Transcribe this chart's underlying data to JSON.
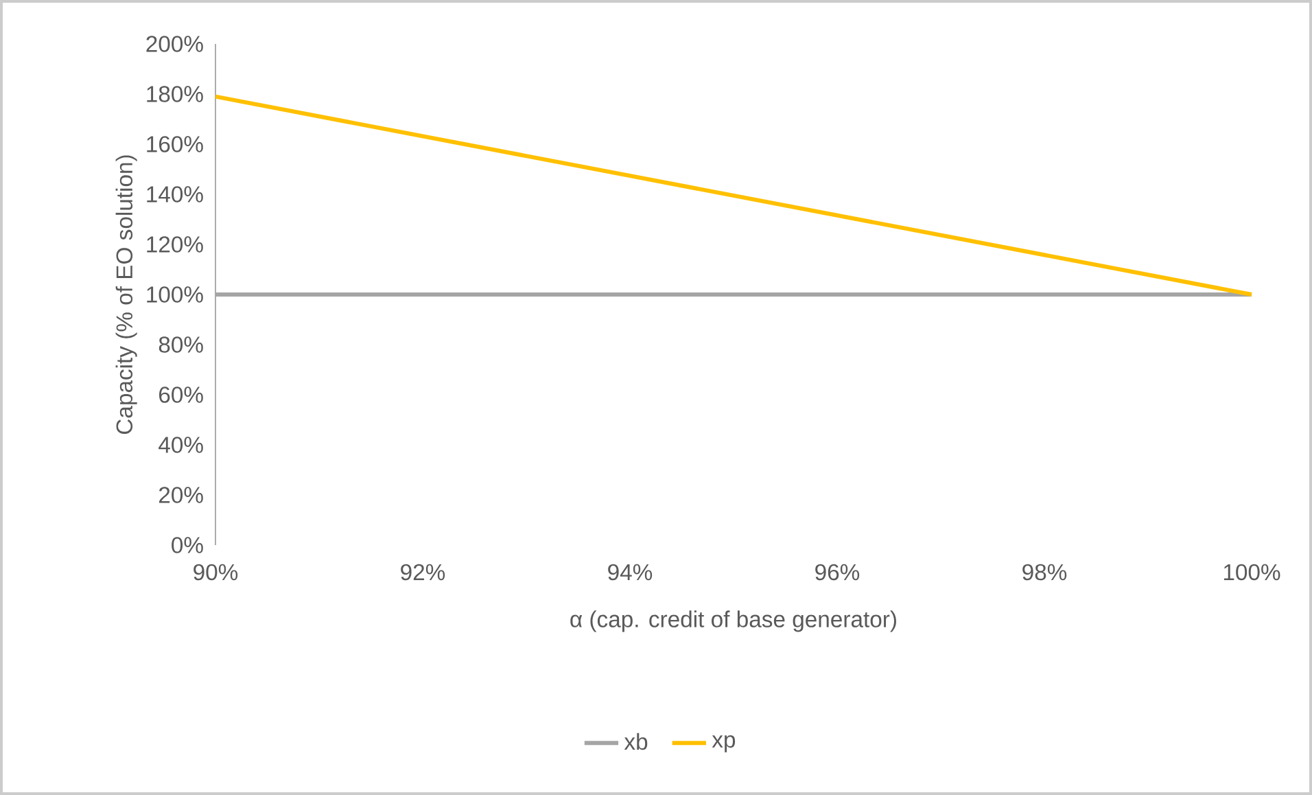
{
  "chart_data": {
    "type": "line",
    "xlabel": "α (cap. credit of base generator)",
    "ylabel": "Capacity (% of EO solution)",
    "series": [
      {
        "name": "xb",
        "color": "#a5a5a5",
        "values": [
          100,
          100
        ]
      },
      {
        "name": "xp",
        "color": "#ffc000",
        "values": [
          179,
          100
        ]
      }
    ],
    "x": [
      90,
      100
    ],
    "xlim": [
      90,
      100
    ],
    "ylim": [
      0,
      200
    ],
    "xticks": [
      {
        "value": 90,
        "label": "90%"
      },
      {
        "value": 92,
        "label": "92%"
      },
      {
        "value": 94,
        "label": "94%"
      },
      {
        "value": 96,
        "label": "96%"
      },
      {
        "value": 98,
        "label": "98%"
      },
      {
        "value": 100,
        "label": "100%"
      }
    ],
    "yticks": [
      {
        "value": 0,
        "label": "0%"
      },
      {
        "value": 20,
        "label": "20%"
      },
      {
        "value": 40,
        "label": "40%"
      },
      {
        "value": 60,
        "label": "60%"
      },
      {
        "value": 80,
        "label": "80%"
      },
      {
        "value": 100,
        "label": "100%"
      },
      {
        "value": 120,
        "label": "120%"
      },
      {
        "value": 140,
        "label": "140%"
      },
      {
        "value": 160,
        "label": "160%"
      },
      {
        "value": 180,
        "label": "180%"
      },
      {
        "value": 200,
        "label": "200%"
      }
    ],
    "grid": false,
    "legend": "bottom",
    "marker": "none",
    "line_style": "solid"
  }
}
